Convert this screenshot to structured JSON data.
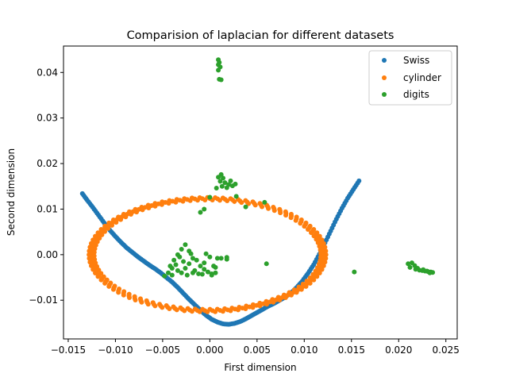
{
  "chart_data": {
    "type": "scatter",
    "title": "Comparision of laplacian for different datasets",
    "xlabel": "First dimension",
    "ylabel": "Second dimension",
    "xlim": [
      -0.0155,
      0.0262
    ],
    "ylim": [
      -0.0185,
      0.0458
    ],
    "xticks": [
      -0.015,
      -0.01,
      -0.005,
      0.0,
      0.005,
      0.01,
      0.015,
      0.02,
      0.025
    ],
    "xtick_labels": [
      "−0.015",
      "−0.010",
      "−0.005",
      "0.000",
      "0.005",
      "0.010",
      "0.015",
      "0.020",
      "0.025"
    ],
    "yticks": [
      -0.01,
      0.0,
      0.01,
      0.02,
      0.03,
      0.04
    ],
    "ytick_labels": [
      "−0.01",
      "0.00",
      "0.01",
      "0.02",
      "0.03",
      "0.04"
    ],
    "grid": false,
    "legend": "top-right",
    "series": [
      {
        "name": "Swiss",
        "color": "#1f77b4",
        "points": [
          [
            -0.0135,
            0.0134
          ],
          [
            -0.013,
            0.012
          ],
          [
            -0.0124,
            0.0104
          ],
          [
            -0.0118,
            0.0087
          ],
          [
            -0.0112,
            0.007
          ],
          [
            -0.0106,
            0.0054
          ],
          [
            -0.01,
            0.004
          ],
          [
            -0.0094,
            0.0027
          ],
          [
            -0.0088,
            0.0015
          ],
          [
            -0.0082,
            0.0005
          ],
          [
            -0.0076,
            -0.0005
          ],
          [
            -0.007,
            -0.0014
          ],
          [
            -0.0064,
            -0.0023
          ],
          [
            -0.0058,
            -0.0031
          ],
          [
            -0.0052,
            -0.004
          ],
          [
            -0.0046,
            -0.005
          ],
          [
            -0.004,
            -0.006
          ],
          [
            -0.0034,
            -0.0072
          ],
          [
            -0.0028,
            -0.0085
          ],
          [
            -0.0022,
            -0.0098
          ],
          [
            -0.0016,
            -0.011
          ],
          [
            -0.001,
            -0.0122
          ],
          [
            -0.0004,
            -0.0133
          ],
          [
            0.0002,
            -0.0142
          ],
          [
            0.0008,
            -0.0148
          ],
          [
            0.0014,
            -0.0152
          ],
          [
            0.002,
            -0.0153
          ],
          [
            0.0026,
            -0.0151
          ],
          [
            0.0032,
            -0.0147
          ],
          [
            0.0038,
            -0.0141
          ],
          [
            0.0044,
            -0.0134
          ],
          [
            0.005,
            -0.0127
          ],
          [
            0.0056,
            -0.012
          ],
          [
            0.0062,
            -0.0113
          ],
          [
            0.0068,
            -0.0107
          ],
          [
            0.0074,
            -0.01
          ],
          [
            0.008,
            -0.0093
          ],
          [
            0.0086,
            -0.0084
          ],
          [
            0.0092,
            -0.0072
          ],
          [
            0.0098,
            -0.0058
          ],
          [
            0.0104,
            -0.0041
          ],
          [
            0.011,
            -0.0022
          ],
          [
            0.0116,
            0.0001
          ],
          [
            0.0122,
            0.0026
          ],
          [
            0.0128,
            0.0052
          ],
          [
            0.0134,
            0.0078
          ],
          [
            0.014,
            0.0102
          ],
          [
            0.0146,
            0.0124
          ],
          [
            0.0152,
            0.0143
          ],
          [
            0.0158,
            0.0162
          ]
        ]
      },
      {
        "name": "cylinder",
        "color": "#ff7f0e",
        "ellipse": {
          "cx": -0.00025,
          "cy": 0.0,
          "rx": 0.0122,
          "ry": 0.0122,
          "n": 96
        }
      },
      {
        "name": "digits",
        "color": "#2ca02c",
        "points": [
          [
            0.0009,
            0.0428
          ],
          [
            0.001,
            0.0422
          ],
          [
            0.0009,
            0.0417
          ],
          [
            0.0011,
            0.0412
          ],
          [
            0.0009,
            0.0405
          ],
          [
            0.001,
            0.0385
          ],
          [
            0.0012,
            0.0384
          ],
          [
            0.0009,
            0.017
          ],
          [
            0.0012,
            0.0176
          ],
          [
            0.0014,
            0.0168
          ],
          [
            0.0011,
            0.0161
          ],
          [
            0.0016,
            0.0158
          ],
          [
            0.002,
            0.0154
          ],
          [
            0.0024,
            0.0151
          ],
          [
            0.0013,
            0.015
          ],
          [
            0.0018,
            0.0147
          ],
          [
            0.0027,
            0.0155
          ],
          [
            0.0007,
            0.0146
          ],
          [
            0.0022,
            0.0162
          ],
          [
            0.0,
            0.0126
          ],
          [
            0.0028,
            0.0128
          ],
          [
            -0.0006,
            0.01
          ],
          [
            -0.001,
            0.0093
          ],
          [
            0.0038,
            0.0105
          ],
          [
            0.0058,
            0.0115
          ],
          [
            -0.0048,
            -0.0047
          ],
          [
            -0.0044,
            -0.004
          ],
          [
            -0.004,
            -0.003
          ],
          [
            -0.0036,
            -0.0022
          ],
          [
            -0.0038,
            -0.0012
          ],
          [
            -0.0032,
            -0.0005
          ],
          [
            -0.0028,
            -0.0015
          ],
          [
            -0.0034,
            -0.0035
          ],
          [
            -0.003,
            -0.004
          ],
          [
            -0.0026,
            -0.003
          ],
          [
            -0.0022,
            -0.002
          ],
          [
            -0.0018,
            -0.0008
          ],
          [
            -0.002,
            0.0002
          ],
          [
            -0.0014,
            -0.0012
          ],
          [
            -0.001,
            -0.0025
          ],
          [
            -0.0006,
            -0.0032
          ],
          [
            -0.0002,
            -0.0038
          ],
          [
            0.0002,
            -0.0042
          ],
          [
            0.0006,
            -0.004
          ],
          [
            -0.0008,
            -0.0043
          ],
          [
            -0.0024,
            -0.0045
          ],
          [
            -0.003,
            0.0012
          ],
          [
            -0.0026,
            0.0022
          ],
          [
            -0.0022,
            0.0008
          ],
          [
            0.0,
            -0.0005
          ],
          [
            -0.0004,
            0.0002
          ],
          [
            0.0004,
            -0.0025
          ],
          [
            0.0008,
            -0.0008
          ],
          [
            0.0012,
            -0.0008
          ],
          [
            0.0018,
            -0.0006
          ],
          [
            -0.0016,
            -0.0035
          ],
          [
            -0.0012,
            -0.0042
          ],
          [
            -0.0034,
            0.0
          ],
          [
            -0.004,
            -0.0045
          ],
          [
            -0.0042,
            -0.0025
          ],
          [
            0.0006,
            -0.0028
          ],
          [
            -0.0006,
            -0.0018
          ],
          [
            0.0002,
            -0.0045
          ],
          [
            -0.0018,
            -0.004
          ],
          [
            0.0018,
            -0.001
          ],
          [
            0.006,
            -0.002
          ],
          [
            0.0153,
            -0.0038
          ],
          [
            0.021,
            -0.002
          ],
          [
            0.0214,
            -0.0018
          ],
          [
            0.0212,
            -0.0028
          ],
          [
            0.0218,
            -0.0032
          ],
          [
            0.0222,
            -0.0034
          ],
          [
            0.0225,
            -0.0035
          ],
          [
            0.0228,
            -0.0036
          ],
          [
            0.0231,
            -0.0037
          ],
          [
            0.0234,
            -0.0038
          ],
          [
            0.0236,
            -0.0039
          ],
          [
            0.023,
            -0.0036
          ],
          [
            0.0226,
            -0.0033
          ],
          [
            0.022,
            -0.003
          ],
          [
            0.0217,
            -0.0024
          ],
          [
            0.0233,
            -0.004
          ]
        ]
      }
    ]
  }
}
